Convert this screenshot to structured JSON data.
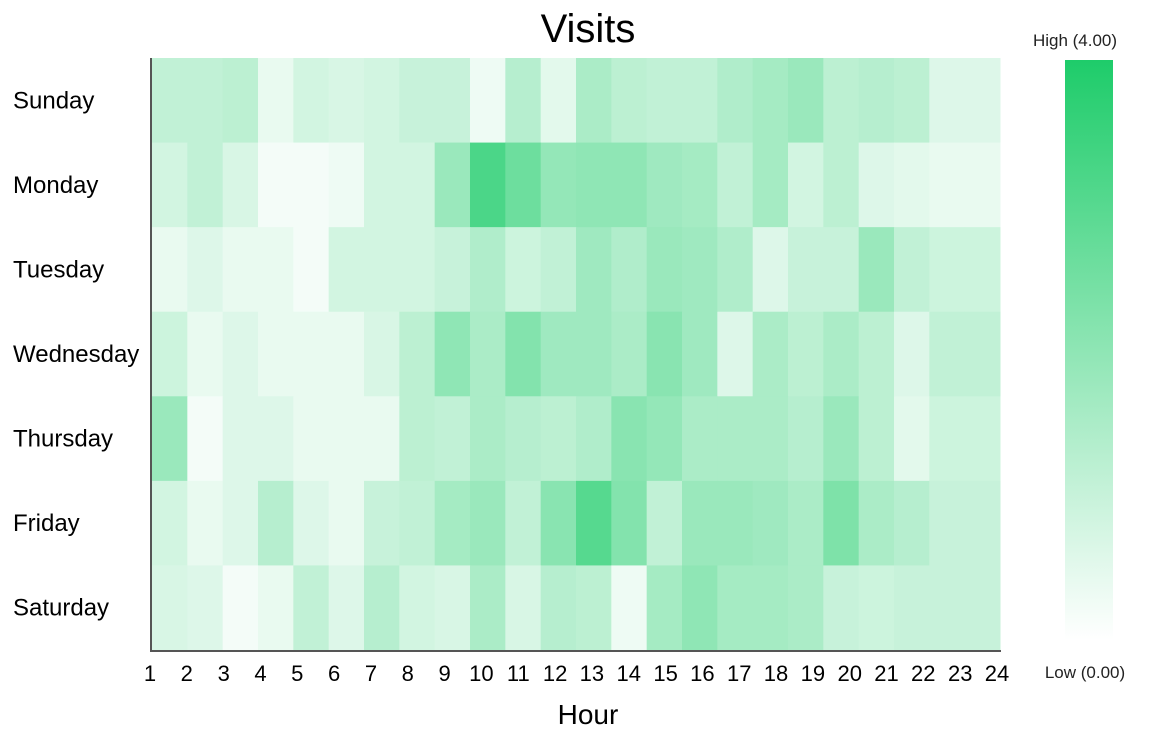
{
  "chart_data": {
    "type": "heatmap",
    "title": "Visits",
    "xlabel": "Hour",
    "ylabel": "",
    "x": [
      "1",
      "2",
      "3",
      "4",
      "5",
      "6",
      "7",
      "8",
      "9",
      "10",
      "11",
      "12",
      "13",
      "14",
      "15",
      "16",
      "17",
      "18",
      "19",
      "20",
      "21",
      "22",
      "23",
      "24"
    ],
    "y": [
      "Sunday",
      "Monday",
      "Tuesday",
      "Wednesday",
      "Thursday",
      "Friday",
      "Saturday"
    ],
    "values": [
      [
        1.1,
        1.1,
        1.2,
        0.4,
        0.8,
        0.7,
        0.8,
        1.0,
        1.0,
        0.3,
        1.3,
        0.5,
        1.5,
        1.2,
        1.1,
        1.1,
        1.4,
        1.6,
        1.8,
        1.2,
        1.3,
        1.2,
        0.6,
        0.6
      ],
      [
        0.8,
        1.1,
        0.7,
        0.2,
        0.2,
        0.3,
        0.8,
        0.8,
        1.8,
        3.2,
        2.6,
        1.9,
        2.0,
        2.0,
        1.7,
        1.6,
        1.1,
        1.6,
        0.8,
        1.2,
        0.6,
        0.5,
        0.4,
        0.4
      ],
      [
        0.4,
        0.6,
        0.4,
        0.4,
        0.2,
        0.8,
        0.8,
        0.8,
        1.0,
        1.4,
        0.9,
        1.1,
        1.7,
        1.4,
        1.8,
        1.7,
        1.4,
        0.6,
        1.0,
        1.0,
        1.8,
        1.1,
        0.9,
        0.9
      ],
      [
        0.9,
        0.4,
        0.6,
        0.4,
        0.4,
        0.4,
        0.7,
        1.2,
        2.0,
        1.5,
        2.2,
        1.7,
        1.7,
        1.5,
        2.1,
        1.7,
        0.6,
        1.5,
        1.2,
        1.5,
        1.2,
        0.6,
        1.1,
        1.1
      ],
      [
        1.8,
        0.2,
        0.6,
        0.6,
        0.4,
        0.4,
        0.4,
        1.2,
        1.1,
        1.5,
        1.3,
        1.2,
        1.4,
        2.1,
        1.9,
        1.5,
        1.5,
        1.5,
        1.3,
        1.8,
        1.2,
        0.5,
        0.9,
        0.9
      ],
      [
        0.8,
        0.4,
        0.6,
        1.3,
        0.6,
        0.4,
        1.0,
        1.1,
        1.6,
        1.8,
        1.1,
        2.1,
        3.0,
        2.2,
        1.1,
        1.8,
        1.8,
        1.7,
        1.5,
        2.3,
        1.5,
        1.3,
        1.0,
        1.0
      ],
      [
        0.7,
        0.6,
        0.2,
        0.4,
        1.1,
        0.6,
        1.3,
        0.8,
        0.7,
        1.5,
        0.7,
        1.3,
        1.2,
        0.3,
        1.6,
        2.0,
        1.6,
        1.6,
        1.5,
        1.0,
        0.9,
        1.0,
        1.0,
        1.0
      ]
    ],
    "color_scale": {
      "min": 0,
      "max": 4,
      "low_color": "#ffffff",
      "high_color": "#1ecc6a"
    },
    "legend": {
      "high_label": "High (4.00)",
      "low_label": "Low (0.00)",
      "placement": "right"
    },
    "grid": false
  }
}
